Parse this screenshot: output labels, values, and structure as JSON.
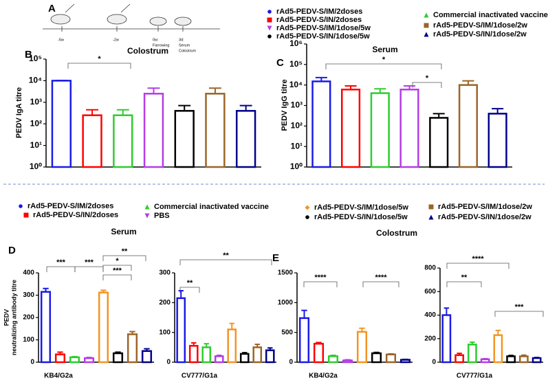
{
  "panel_labels": [
    "A",
    "B",
    "C",
    "D",
    "E"
  ],
  "timeline": [
    [
      "-5w"
    ],
    [
      "-2w"
    ],
    [
      "0w:",
      "Farrowing"
    ],
    [
      "3d:",
      "Serum",
      "Colostrum"
    ]
  ],
  "sections": [
    "Serum",
    "Colostrum"
  ],
  "legends": [
    {
      "items": [
        {
          "name": "rAd5-PEDV-S/IM/2doses",
          "color": "#1a1ae6",
          "marker": "circle"
        },
        {
          "name": "rAd5-PEDV-S/IN/2doses",
          "color": "#ff0000",
          "marker": "square"
        },
        {
          "name": "rAd5-PEDV-S/IM/1dose/5w",
          "color": "#b43ce6",
          "marker": "triangle-down"
        },
        {
          "name": "rAd5-PEDV-S/IN/1dose/5w",
          "color": "#000000",
          "marker": "circle"
        },
        {
          "name": "Commercial inactivated vaccine",
          "color": "#2ecc2e",
          "marker": "triangle-up"
        },
        {
          "name": "rAd5-PEDV-S/IM/1dose/2w",
          "color": "#9c6428",
          "marker": "square"
        },
        {
          "name": "rAd5-PEDV-S/IN/1dose/2w",
          "color": "#00008b",
          "marker": "triangle-up"
        }
      ]
    },
    {
      "items": [
        {
          "name": "rAd5-PEDV-S/IM/2doses",
          "color": "#1a1ae6",
          "marker": "circle"
        },
        {
          "name": "rAd5-PEDV-S/IN/2doses",
          "color": "#ff0000",
          "marker": "square"
        },
        {
          "name": "Commercial inactivated vaccine",
          "color": "#2ecc2e",
          "marker": "triangle-up"
        },
        {
          "name": "PBS",
          "color": "#b43ce6",
          "marker": "triangle-down"
        },
        {
          "name": "rAd5-PEDV-S/IM/1dose/5w",
          "color": "#f39423",
          "marker": "diamond"
        },
        {
          "name": "rAd5-PEDV-S/IN/1dose/5w",
          "color": "#000000",
          "marker": "circle"
        },
        {
          "name": "rAd5-PEDV-S/IM/1dose/2w",
          "color": "#9c6428",
          "marker": "square"
        },
        {
          "name": "rAd5-PEDV-S/IN/1dose/2w",
          "color": "#00008b",
          "marker": "triangle-up"
        }
      ]
    }
  ],
  "chart_data": [
    {
      "type": "bar",
      "title": "Colostrum",
      "ylabel": "PEDV IgA titre",
      "log": true,
      "values": [
        10000,
        250,
        250,
        2500,
        400,
        2500,
        400
      ],
      "errors": [
        200,
        200,
        200,
        2000,
        300,
        2000,
        300
      ],
      "colors": [
        "#1a1ae6",
        "#ff0000",
        "#2ecc2e",
        "#b43ce6",
        "#000000",
        "#9c6428",
        "#00008b"
      ],
      "ylim": [
        1,
        100000
      ],
      "yticks": [
        {
          "value": 1,
          "label": "10⁰"
        },
        {
          "value": 10,
          "label": "10¹"
        },
        {
          "value": 100,
          "label": "10²"
        },
        {
          "value": 1000,
          "label": "10³"
        },
        {
          "value": 10000,
          "label": "10⁴"
        },
        {
          "value": 100000,
          "label": "10⁵"
        }
      ],
      "annotations": [
        "*"
      ]
    },
    {
      "type": "bar",
      "title": "Serum",
      "ylabel": "PEDV IgG titre",
      "log": true,
      "values": [
        15000,
        6000,
        4000,
        6000,
        250,
        10000,
        400
      ],
      "errors": [
        8000,
        3000,
        2500,
        3000,
        150,
        6000,
        300
      ],
      "colors": [
        "#1a1ae6",
        "#ff0000",
        "#2ecc2e",
        "#b43ce6",
        "#000000",
        "#9c6428",
        "#00008b"
      ],
      "ylim": [
        1,
        1000000
      ],
      "yticks": [
        {
          "value": 1,
          "label": "10⁰"
        },
        {
          "value": 10,
          "label": "10¹"
        },
        {
          "value": 100,
          "label": "10²"
        },
        {
          "value": 1000,
          "label": "10³"
        },
        {
          "value": 10000,
          "label": "10⁴"
        },
        {
          "value": 100000,
          "label": "10⁵"
        },
        {
          "value": 1000000,
          "label": "10⁶"
        }
      ],
      "annotations": [
        "*",
        "*"
      ]
    },
    {
      "type": "bar",
      "ylabel": [
        "PEDV",
        "neutralizing antibody titre"
      ],
      "xlabel": "KB4/G2a",
      "log": false,
      "values": [
        315,
        35,
        22,
        18,
        312,
        40,
        125,
        50
      ],
      "errors": [
        15,
        10,
        3,
        3,
        10,
        5,
        12,
        10
      ],
      "colors": [
        "#1a1ae6",
        "#ff0000",
        "#2ecc2e",
        "#b43ce6",
        "#f39423",
        "#000000",
        "#9c6428",
        "#00008b"
      ],
      "ylim": [
        0,
        400
      ],
      "yticks": [
        0,
        100,
        200,
        300,
        400
      ],
      "annotations": [
        "***",
        "***",
        "**",
        "*",
        "***"
      ]
    },
    {
      "type": "bar",
      "xlabel": "CV777/G1a",
      "log": false,
      "values": [
        215,
        55,
        50,
        20,
        110,
        28,
        50,
        40
      ],
      "errors": [
        25,
        10,
        12,
        3,
        20,
        4,
        10,
        8
      ],
      "colors": [
        "#1a1ae6",
        "#ff0000",
        "#2ecc2e",
        "#b43ce6",
        "#f39423",
        "#000000",
        "#9c6428",
        "#00008b"
      ],
      "ylim": [
        0,
        300
      ],
      "yticks": [
        0,
        100,
        200,
        300
      ],
      "annotations": [
        "**",
        "**"
      ]
    },
    {
      "type": "bar",
      "xlabel": "KB4/G2a",
      "log": false,
      "values": [
        740,
        310,
        100,
        30,
        510,
        150,
        130,
        40
      ],
      "errors": [
        130,
        20,
        15,
        10,
        60,
        15,
        10,
        8
      ],
      "colors": [
        "#1a1ae6",
        "#ff0000",
        "#2ecc2e",
        "#b43ce6",
        "#f39423",
        "#000000",
        "#9c6428",
        "#00008b"
      ],
      "ylim": [
        0,
        1500
      ],
      "yticks": [
        0,
        500,
        1000,
        1500
      ],
      "annotations": [
        "****",
        "****"
      ]
    },
    {
      "type": "bar",
      "xlabel": "CV777/G1a",
      "log": false,
      "values": [
        400,
        60,
        150,
        25,
        230,
        50,
        50,
        35
      ],
      "errors": [
        60,
        15,
        20,
        5,
        40,
        8,
        10,
        5
      ],
      "colors": [
        "#1a1ae6",
        "#ff0000",
        "#2ecc2e",
        "#b43ce6",
        "#f39423",
        "#000000",
        "#9c6428",
        "#00008b"
      ],
      "ylim": [
        0,
        800
      ],
      "yticks": [
        0,
        200,
        400,
        600,
        800
      ],
      "annotations": [
        "**",
        "****",
        "***"
      ]
    }
  ]
}
